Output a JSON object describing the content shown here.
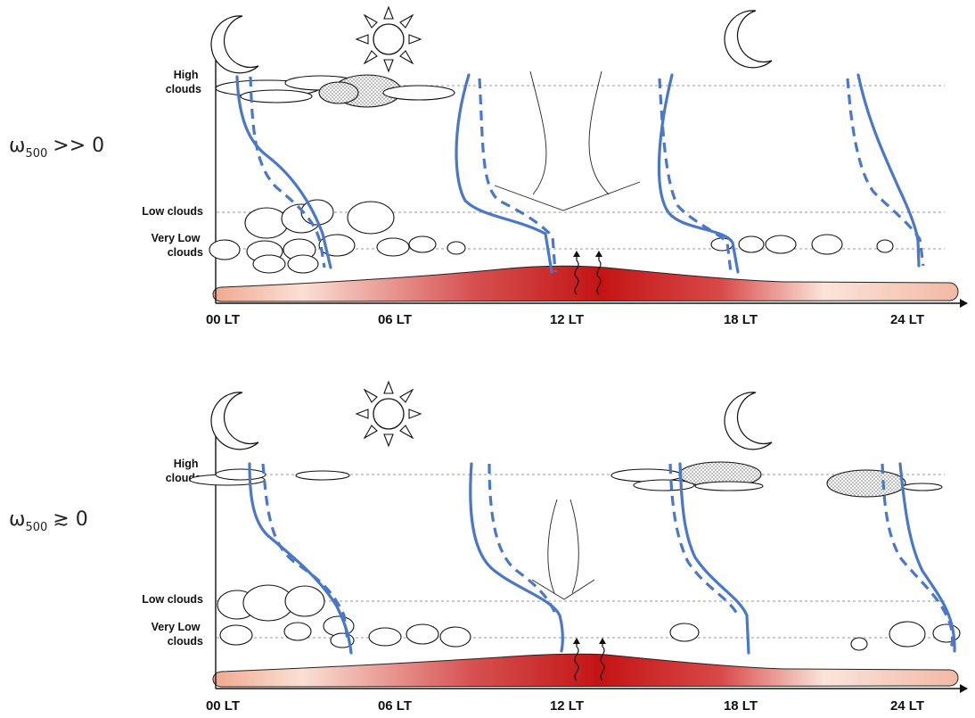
{
  "panels": [
    {
      "regime": {
        "symbol": "ω",
        "subscript": "500",
        "relation": ">> 0"
      },
      "levels": {
        "high": [
          "High",
          "clouds"
        ],
        "low": [
          "Low clouds"
        ],
        "very_low": [
          "Very Low",
          "clouds"
        ]
      },
      "time_ticks": [
        "00 LT",
        "06 LT",
        "12 LT",
        "18 LT",
        "24 LT"
      ]
    },
    {
      "regime": {
        "symbol": "ω",
        "subscript": "500",
        "relation": "≳ 0"
      },
      "levels": {
        "high": [
          "High",
          "clouds"
        ],
        "low": [
          "Low clouds"
        ],
        "very_low": [
          "Very Low",
          "clouds"
        ]
      },
      "time_ticks": [
        "00 LT",
        "06 LT",
        "12 LT",
        "18 LT",
        "24 LT"
      ]
    }
  ],
  "colors": {
    "profile": "#4a78c8",
    "surface_cool": "#f5c9b8",
    "surface_warm": "#c41414",
    "cloud_hatch": "#bdbdbd"
  },
  "icons": [
    "moon-icon",
    "sun-icon",
    "cloud-icon",
    "surface-flux-icon"
  ]
}
